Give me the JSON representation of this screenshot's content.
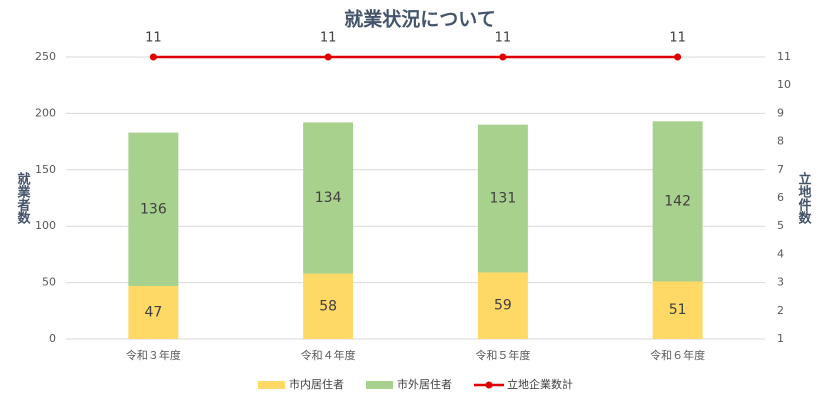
{
  "chart_data": {
    "type": "bar",
    "title": "就業状況について",
    "y_label": "就業者数",
    "y2_label": "立地件数",
    "categories": [
      "令和３年度",
      "令和４年度",
      "令和５年度",
      "令和６年度"
    ],
    "series": [
      {
        "name": "市内居住者",
        "color": "#FFD966",
        "values": [
          47,
          58,
          59,
          51
        ]
      },
      {
        "name": "市外居住者",
        "color": "#A9D18E",
        "values": [
          136,
          134,
          131,
          142
        ]
      },
      {
        "name": "立地企業数計",
        "color": "#E00000",
        "type": "line",
        "axis": "y2",
        "values": [
          11,
          11,
          11,
          11
        ]
      }
    ],
    "ylim": [
      0,
      250
    ],
    "yticks": [
      0,
      50,
      100,
      150,
      200,
      250
    ],
    "y2lim": [
      1,
      11
    ],
    "y2ticks": [
      1,
      2,
      3,
      4,
      5,
      6,
      7,
      8,
      9,
      10,
      11
    ],
    "grid": true,
    "legend": "bottom"
  }
}
